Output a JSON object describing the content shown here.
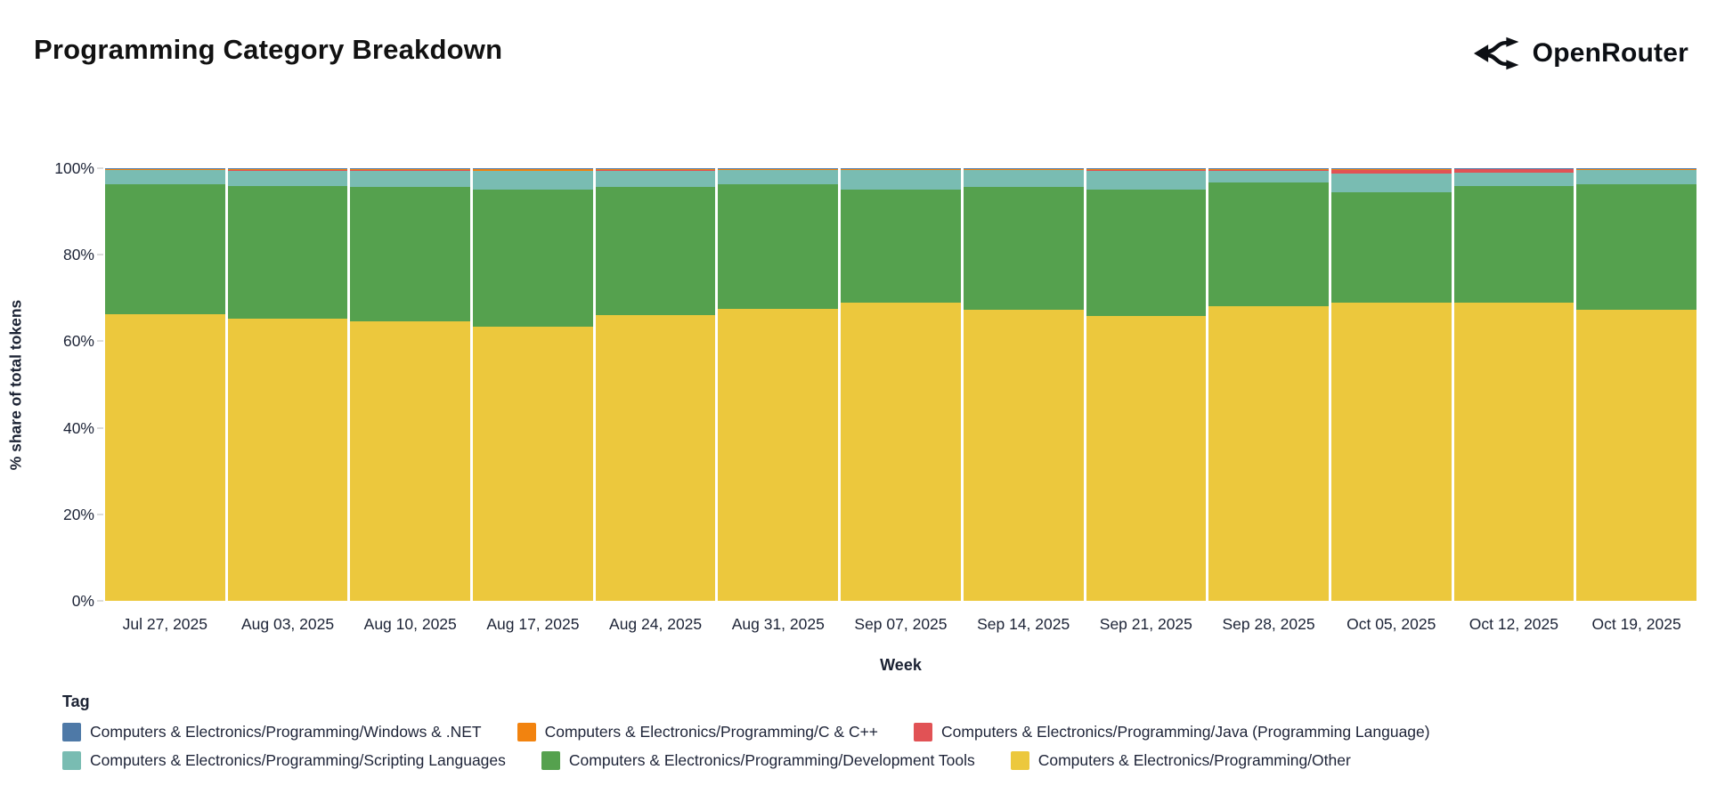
{
  "header": {
    "title": "Programming Category Breakdown",
    "brand": "OpenRouter"
  },
  "chart_data": {
    "type": "bar",
    "variant": "stacked-100-percent",
    "title": "Programming Category Breakdown",
    "xlabel": "Week",
    "ylabel": "% share of total tokens",
    "ylim": [
      0,
      100
    ],
    "yticks": [
      {
        "value": 0,
        "label": "0%"
      },
      {
        "value": 20,
        "label": "20%"
      },
      {
        "value": 40,
        "label": "40%"
      },
      {
        "value": 60,
        "label": "60%"
      },
      {
        "value": 80,
        "label": "80%"
      },
      {
        "value": 100,
        "label": "100%"
      }
    ],
    "categories": [
      "Jul 27, 2025",
      "Aug 03, 2025",
      "Aug 10, 2025",
      "Aug 17, 2025",
      "Aug 24, 2025",
      "Aug 31, 2025",
      "Sep 07, 2025",
      "Sep 14, 2025",
      "Sep 21, 2025",
      "Sep 28, 2025",
      "Oct 05, 2025",
      "Oct 12, 2025",
      "Oct 19, 2025"
    ],
    "stack_order_bottom_to_top": [
      "Other",
      "Development Tools",
      "Scripting Languages",
      "Java (Programming Language)",
      "C & C++",
      "Windows & .NET"
    ],
    "legend_title": "Tag",
    "legend_position": "bottom",
    "grid": false,
    "series": [
      {
        "name": "Computers & Electronics/Programming/Windows & .NET",
        "color": "#4e79a7",
        "values": [
          0.1,
          0.1,
          0.1,
          0.1,
          0.1,
          0.1,
          0.1,
          0.1,
          0.1,
          0.1,
          0.1,
          0.1,
          0.1
        ]
      },
      {
        "name": "Computers & Electronics/Programming/C & C++",
        "color": "#f2830f",
        "values": [
          0.3,
          0.4,
          0.4,
          0.5,
          0.4,
          0.3,
          0.3,
          0.3,
          0.4,
          0.4,
          0.2,
          0.2,
          0.3
        ]
      },
      {
        "name": "Computers & Electronics/Programming/Java (Programming Language)",
        "color": "#e15255",
        "values": [
          0.1,
          0.1,
          0.1,
          0.1,
          0.1,
          0.1,
          0.1,
          0.1,
          0.1,
          0.1,
          0.9,
          0.8,
          0.1
        ]
      },
      {
        "name": "Computers & Electronics/Programming/Scripting Languages",
        "color": "#79bcb2",
        "values": [
          3.2,
          3.6,
          3.8,
          4.2,
          3.7,
          3.1,
          4.4,
          3.9,
          4.3,
          2.6,
          4.3,
          3.0,
          3.1
        ]
      },
      {
        "name": "Computers & Electronics/Programming/Development Tools",
        "color": "#55a14e",
        "values": [
          30.0,
          30.6,
          31.0,
          31.7,
          29.7,
          28.9,
          26.1,
          28.3,
          29.3,
          28.7,
          25.6,
          27.0,
          29.1
        ]
      },
      {
        "name": "Computers & Electronics/Programming/Other",
        "color": "#ecc83d",
        "values": [
          66.3,
          65.2,
          64.6,
          63.4,
          66.0,
          67.5,
          69.0,
          67.3,
          65.8,
          68.1,
          68.9,
          68.9,
          67.3
        ]
      }
    ]
  }
}
